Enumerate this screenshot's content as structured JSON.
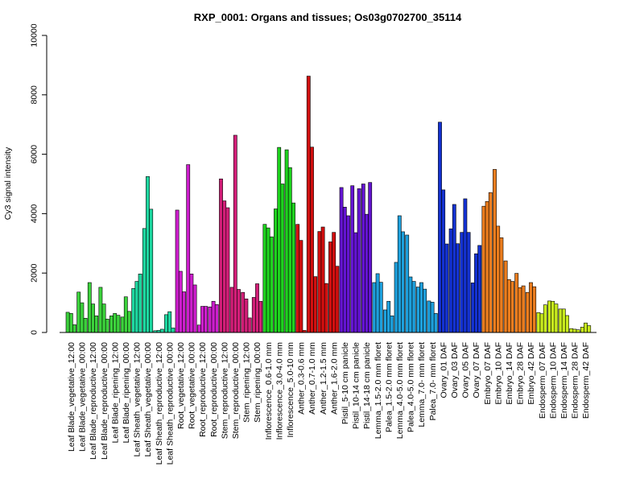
{
  "chart_data": {
    "type": "bar",
    "title": "RXP_0001: Organs and tissues; Os03g0702700_35114",
    "xlabel": "",
    "ylabel": "Cy3 signal intensity",
    "ylim": [
      0,
      10000
    ],
    "yticks": [
      0,
      2000,
      4000,
      6000,
      8000,
      10000
    ],
    "grid": false,
    "x_tick_labels": [
      "Leaf Blade_vegetative_12:00",
      "Leaf Blade_vegetative_00:00",
      "Leaf Blade_reproductive_12:00",
      "Leaf Blade_reproductive_00:00",
      "Leaf Blade_ripening_12:00",
      "Leaf Blade_ripening_00:00",
      "Leaf Sheath_vegetative_12:00",
      "Leaf Sheath_vegetative_00:00",
      "Leaf Sheath_reproductive_12:00",
      "Leaf Sheath_reproductive_00:00",
      "Root_vegetative_12:00",
      "Root_vegetative_00:00",
      "Root_reproductive_12:00",
      "Root_reproductive_00:00",
      "Stem_reproductive_12:00",
      "Stem_reproductive_00:00",
      "Stem_ripening_12:00",
      "Stem_ripening_00:00",
      "Inflorescence_0.6-1.0 mm",
      "Inflorescence_3.0-4.0 mm",
      "Inflorescence_5.0-10 mm",
      "Anther_0.3-0.6 mm",
      "Anther_0.7-1.0 mm",
      "Anther_1.2-1.5 mm",
      "Anther_1.6-2.0 mm",
      "Pistil_5-10 cm panicle",
      "Pistil_10-14 cm panicle",
      "Pistil_14-18 cm panicle",
      "Lemma_1.5-2.0 mm floret",
      "Palea_1.5-2.0 mm floret",
      "Lemma_4.0-5.0 mm floret",
      "Palea_4.0-5.0 mm floret",
      "Lemma_7.0- mm floret",
      "Palea_7.0- mm floret",
      "Ovary_01 DAF",
      "Ovary_03 DAF",
      "Ovary_05 DAF",
      "Ovary_07 DAF",
      "Embryo_07 DAF",
      "Embryo_10 DAF",
      "Embryo_14 DAF",
      "Embryo_28 DAF",
      "Embryo_42 DAF",
      "Endosperm_07 DAF",
      "Endosperm_10 DAF",
      "Endosperm_14 DAF",
      "Endosperm_28 DAF",
      "Endosperm_42 DAF"
    ],
    "group_colors": [
      "#3cd23c",
      "#3cd23c",
      "#3cd23c",
      "#3cd23c",
      "#3cd23c",
      "#3cd23c",
      "#1ed7a0",
      "#1ed7a0",
      "#1ed7a0",
      "#1ed7a0",
      "#cd1ecd",
      "#cd1ecd",
      "#cd1ecd",
      "#cd1ecd",
      "#d21e78",
      "#d21e78",
      "#d21e78",
      "#d21e78",
      "#1ed21e",
      "#1ed21e",
      "#1ed21e",
      "#d20f0f",
      "#d20f0f",
      "#d20f0f",
      "#d20f0f",
      "#6414d2",
      "#6414d2",
      "#6414d2",
      "#1ea0dc",
      "#1ea0dc",
      "#1ea0dc",
      "#1ea0dc",
      "#1ea0dc",
      "#1ea0dc",
      "#1432d2",
      "#1432d2",
      "#1432d2",
      "#1432d2",
      "#eb7d1e",
      "#eb7d1e",
      "#eb7d1e",
      "#eb7d1e",
      "#eb7d1e",
      "#c8eb1e",
      "#c8eb1e",
      "#c8eb1e",
      "#c8eb1e",
      "#c8eb1e"
    ],
    "groups": [
      [
        680,
        640,
        260
      ],
      [
        1360,
        1000,
        480
      ],
      [
        1680,
        960,
        560
      ],
      [
        1520,
        960,
        450
      ],
      [
        560,
        640,
        580
      ],
      [
        520,
        1200,
        710
      ],
      [
        1480,
        1720,
        1970
      ],
      [
        3500,
        5250,
        4150
      ],
      [
        60,
        70,
        110
      ],
      [
        600,
        700,
        150
      ],
      [
        4120,
        2060,
        1370
      ],
      [
        5650,
        1970,
        1600
      ],
      [
        250,
        880,
        880
      ],
      [
        860,
        1050,
        940
      ],
      [
        5170,
        4430,
        4200
      ],
      [
        1520,
        6640,
        1450
      ],
      [
        1350,
        1130,
        490
      ],
      [
        1180,
        1640,
        1050
      ],
      [
        3640,
        3520,
        3220
      ],
      [
        4160,
        6230,
        5000
      ],
      [
        6150,
        5550,
        4360
      ],
      [
        3640,
        3100,
        70
      ],
      [
        8630,
        6240,
        1880
      ],
      [
        3400,
        3550,
        1650
      ],
      [
        3050,
        3370,
        2230
      ],
      [
        4880,
        4220,
        3930
      ],
      [
        4940,
        3360,
        4840
      ],
      [
        5000,
        3980,
        5050
      ],
      [
        1680,
        1980,
        1690
      ],
      [
        760,
        1050,
        560
      ],
      [
        2360,
        3930,
        3390
      ],
      [
        3280,
        1870,
        1720
      ],
      [
        1530,
        1680,
        1460
      ],
      [
        1060,
        1020,
        640
      ],
      [
        7080,
        4800,
        2980
      ],
      [
        3490,
        4310,
        2990
      ],
      [
        3370,
        4500,
        3370
      ],
      [
        1670,
        2650,
        2930
      ],
      [
        4250,
        4410,
        4710
      ],
      [
        5490,
        3580,
        3190
      ],
      [
        2410,
        1780,
        1720
      ],
      [
        1990,
        1510,
        1570
      ],
      [
        1350,
        1680,
        1540
      ],
      [
        670,
        630,
        930
      ],
      [
        1060,
        1050,
        960
      ],
      [
        790,
        790,
        570
      ],
      [
        130,
        110,
        90
      ],
      [
        180,
        320,
        230
      ]
    ]
  }
}
